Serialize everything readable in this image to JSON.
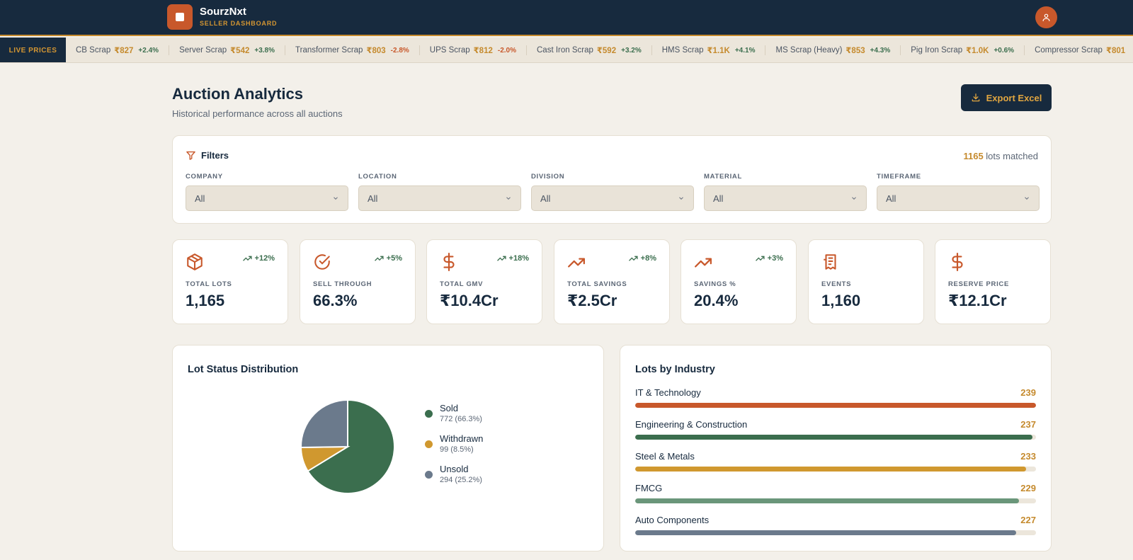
{
  "app": {
    "name": "SourzNxt",
    "subtitle": "SELLER DASHBOARD"
  },
  "ticker": {
    "badge": "LIVE PRICES",
    "items": [
      {
        "name": "CB Scrap",
        "price": "₹827",
        "change": "+2.4%",
        "direction": "up"
      },
      {
        "name": "Server Scrap",
        "price": "₹542",
        "change": "+3.8%",
        "direction": "up"
      },
      {
        "name": "Transformer Scrap",
        "price": "₹803",
        "change": "-2.8%",
        "direction": "down"
      },
      {
        "name": "UPS Scrap",
        "price": "₹812",
        "change": "-2.0%",
        "direction": "down"
      },
      {
        "name": "Cast Iron Scrap",
        "price": "₹592",
        "change": "+3.2%",
        "direction": "up"
      },
      {
        "name": "HMS Scrap",
        "price": "₹1.1K",
        "change": "+4.1%",
        "direction": "up"
      },
      {
        "name": "MS Scrap (Heavy)",
        "price": "₹853",
        "change": "+4.3%",
        "direction": "up"
      },
      {
        "name": "Pig Iron Scrap",
        "price": "₹1.0K",
        "change": "+0.6%",
        "direction": "up"
      },
      {
        "name": "Compressor Scrap",
        "price": "₹801",
        "change": "",
        "direction": "up"
      }
    ]
  },
  "header": {
    "title": "Auction Analytics",
    "subtitle": "Historical performance across all auctions",
    "export_label": "Export Excel"
  },
  "filters": {
    "title": "Filters",
    "matched_count": "1165",
    "matched_suffix": " lots matched",
    "groups": [
      {
        "label": "COMPANY",
        "value": "All"
      },
      {
        "label": "LOCATION",
        "value": "All"
      },
      {
        "label": "DIVISION",
        "value": "All"
      },
      {
        "label": "MATERIAL",
        "value": "All"
      },
      {
        "label": "TIMEFRAME",
        "value": "All"
      }
    ]
  },
  "stats": [
    {
      "label": "TOTAL LOTS",
      "value": "1,165",
      "trend": "+12%",
      "icon": "package-icon"
    },
    {
      "label": "SELL THROUGH",
      "value": "66.3%",
      "trend": "+5%",
      "icon": "check-circle-icon"
    },
    {
      "label": "TOTAL GMV",
      "value": "₹10.4Cr",
      "trend": "+18%",
      "icon": "dollar-icon"
    },
    {
      "label": "TOTAL SAVINGS",
      "value": "₹2.5Cr",
      "trend": "+8%",
      "icon": "trending-up-icon"
    },
    {
      "label": "SAVINGS %",
      "value": "20.4%",
      "trend": "+3%",
      "icon": "trending-up-icon"
    },
    {
      "label": "EVENTS",
      "value": "1,160",
      "trend": "",
      "icon": "receipt-icon"
    },
    {
      "label": "RESERVE PRICE",
      "value": "₹12.1Cr",
      "trend": "",
      "icon": "dollar-icon"
    }
  ],
  "status_distribution": {
    "title": "Lot Status Distribution",
    "items": [
      {
        "name": "Sold",
        "detail": "772 (66.3%)",
        "count": 772,
        "color": "#3b6e4e"
      },
      {
        "name": "Withdrawn",
        "detail": "99 (8.5%)",
        "count": 99,
        "color": "#d0982f"
      },
      {
        "name": "Unsold",
        "detail": "294 (25.2%)",
        "count": 294,
        "color": "#6b7a8c"
      }
    ]
  },
  "industry": {
    "title": "Lots by Industry",
    "max": 239,
    "items": [
      {
        "name": "IT & Technology",
        "count": 239,
        "color": "#c8582b"
      },
      {
        "name": "Engineering & Construction",
        "count": 237,
        "color": "#3b6e4e"
      },
      {
        "name": "Steel & Metals",
        "count": 233,
        "color": "#d0982f"
      },
      {
        "name": "FMCG",
        "count": 229,
        "color": "#6a967a"
      },
      {
        "name": "Auto Components",
        "count": 227,
        "color": "#6b7a8c"
      }
    ]
  }
}
